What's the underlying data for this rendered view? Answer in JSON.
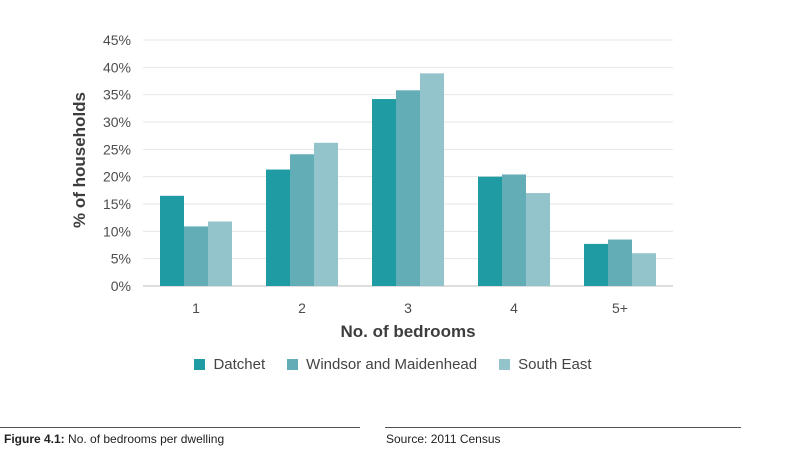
{
  "chart_data": {
    "type": "bar",
    "categories": [
      "1",
      "2",
      "3",
      "4",
      "5+"
    ],
    "series": [
      {
        "name": "Datchet",
        "color": "#1f9ba3",
        "values": [
          16.5,
          21.3,
          34.2,
          20.0,
          7.7
        ]
      },
      {
        "name": "Windsor and Maidenhead",
        "color": "#63adb6",
        "values": [
          10.9,
          24.1,
          35.8,
          20.4,
          8.5
        ]
      },
      {
        "name": "South East",
        "color": "#94c4cb",
        "values": [
          11.8,
          26.2,
          38.9,
          17.0,
          6.0
        ]
      }
    ],
    "xlabel": "No. of bedrooms",
    "ylabel": "% of households",
    "ylim": [
      0,
      45
    ],
    "yticks": [
      "0%",
      "5%",
      "10%",
      "15%",
      "20%",
      "25%",
      "30%",
      "35%",
      "40%",
      "45%"
    ],
    "grid": true,
    "legend_position": "bottom"
  },
  "caption": {
    "figure_label": "Figure 4.1:",
    "figure_text": "No. of bedrooms per dwelling",
    "source": "Source: 2011 Census"
  }
}
